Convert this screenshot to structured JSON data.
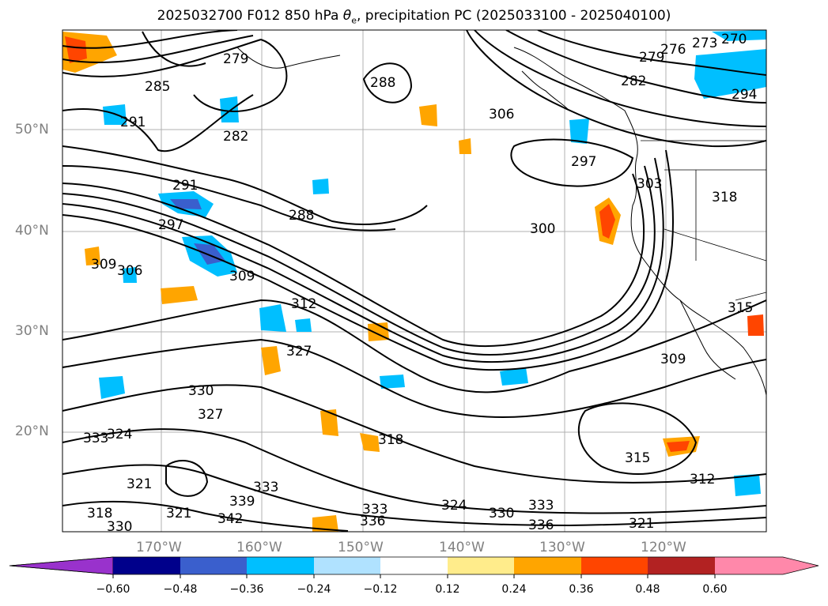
{
  "title": {
    "prefix": "2025032700 F012 850 hPa ",
    "theta": "θ",
    "theta_sub": "e",
    "suffix": ", precipitation PC (2025033100 - 2025040100)"
  },
  "map": {
    "lat_labels": [
      "50°N",
      "40°N",
      "30°N",
      "20°N"
    ],
    "lon_labels": [
      "170°W",
      "160°W",
      "150°W",
      "140°W",
      "130°W",
      "120°W"
    ],
    "contour_labels": [
      "270",
      "273",
      "276",
      "279",
      "282",
      "285",
      "288",
      "291",
      "294",
      "297",
      "300",
      "303",
      "306",
      "309",
      "312",
      "315",
      "318",
      "321",
      "324",
      "327",
      "330",
      "333",
      "336",
      "339",
      "342"
    ]
  },
  "colorbar": {
    "ticks": [
      "−0.60",
      "−0.48",
      "−0.36",
      "−0.24",
      "−0.12",
      "0.12",
      "0.24",
      "0.36",
      "0.48",
      "0.60"
    ],
    "colors": [
      "#9932cc",
      "#00008b",
      "#3a5fcd",
      "#00bfff",
      "#b0e2ff",
      "#ffffff",
      "#ffec8b",
      "#ffa500",
      "#ff4500",
      "#b22222",
      "#ff88aa"
    ]
  }
}
